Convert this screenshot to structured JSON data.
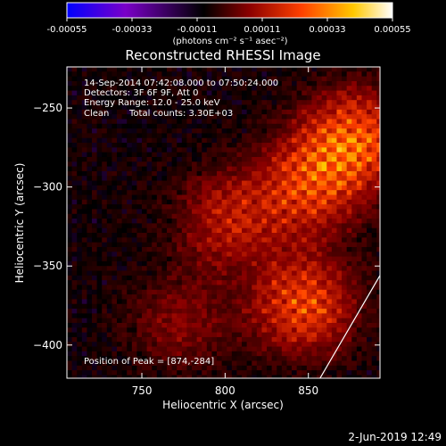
{
  "chart_data": {
    "type": "heatmap",
    "title": "Reconstructed RHESSI Image",
    "colorbar": {
      "ticks": [
        "-0.00055",
        "-0.00033",
        "-0.00011",
        "0.00011",
        "0.00033",
        "0.00055"
      ],
      "range": [
        -0.00055,
        0.00055
      ],
      "unit_label": "(photons cm⁻² s⁻¹ asec⁻²)",
      "colormap": [
        "#0000ff",
        "#7a00c8",
        "#000000",
        "#8b0000",
        "#ff4000",
        "#ffc800",
        "#ffffff"
      ]
    },
    "xlabel": "Heliocentric X (arcsec)",
    "ylabel": "Heliocentric Y (arcsec)",
    "xlim": [
      705,
      893
    ],
    "ylim": [
      -421,
      -224
    ],
    "xticks": [
      750,
      800,
      850
    ],
    "yticks": [
      -250,
      -300,
      -350,
      -400
    ],
    "annotations": {
      "time": "14-Sep-2014 07:42:08.000 to 07:50:24.000",
      "detectors": "Detectors: 3F 6F 9F, Att 0",
      "energy": "Energy Range: 12.0 - 25.0 keV",
      "method": "Clean",
      "counts": "Total counts: 3.30E+03",
      "peak": "Position of Peak = [874,-284]"
    },
    "hot_regions": [
      {
        "x": 877,
        "y": -268,
        "level": 0.0005
      },
      {
        "x": 846,
        "y": -373,
        "level": 0.00045
      },
      {
        "x": 848,
        "y": -298,
        "level": 0.0004
      },
      {
        "x": 800,
        "y": -320,
        "level": 0.0003
      },
      {
        "x": 772,
        "y": -385,
        "level": 0.0002
      }
    ],
    "limb_arc": [
      [
        857,
        -421
      ],
      [
        893,
        -356
      ]
    ]
  },
  "footer": {
    "date": "2-Jun-2019 12:49"
  }
}
